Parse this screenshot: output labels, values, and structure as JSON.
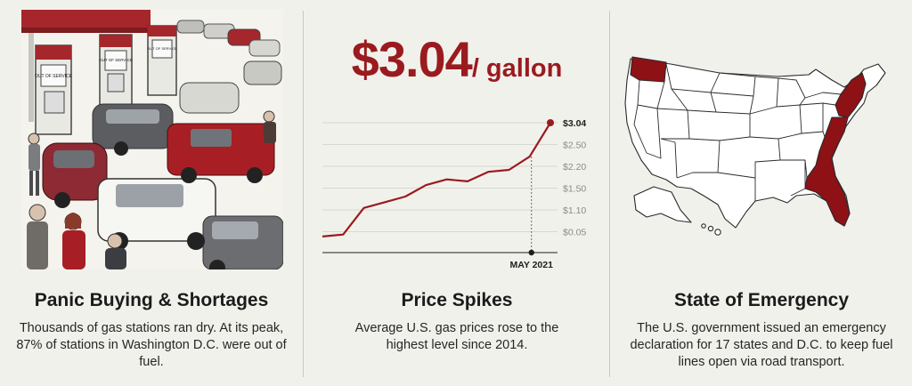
{
  "panels": [
    {
      "title": "Panic Buying & Shortages",
      "body": "Thousands of gas stations ran dry. At its peak, 87% of stations in Washington D.C. were out of fuel."
    },
    {
      "title": "Price Spikes",
      "body": "Average U.S. gas prices rose to the highest level since 2014.",
      "price": {
        "amount": "$3.04",
        "unit": "/ gallon"
      }
    },
    {
      "title": "State of Emergency",
      "body": "The U.S. government issued an emergency declaration for 17 states and D.C. to keep fuel lines open via road transport."
    }
  ],
  "pump_signs": [
    "OUT OF SERVICE",
    "OUT OF SERVICE",
    "OUT OF SERVICE"
  ],
  "colors": {
    "accent": "#9a1b1f",
    "background": "#f1f1ec",
    "state_fill": "#8e1116"
  },
  "chart_data": {
    "type": "line",
    "y_ticks": [
      "$3.04",
      "$2.50",
      "$2.20",
      "$1.50",
      "$1.10",
      "$0.05"
    ],
    "x_marker_label": "MAY 2021",
    "values": [
      0.05,
      0.1,
      0.8,
      0.95,
      1.1,
      1.4,
      1.55,
      1.5,
      1.75,
      1.8,
      2.15,
      3.04
    ],
    "highlight": {
      "x_label": "MAY 2021",
      "value": 3.04
    },
    "grid": true
  }
}
